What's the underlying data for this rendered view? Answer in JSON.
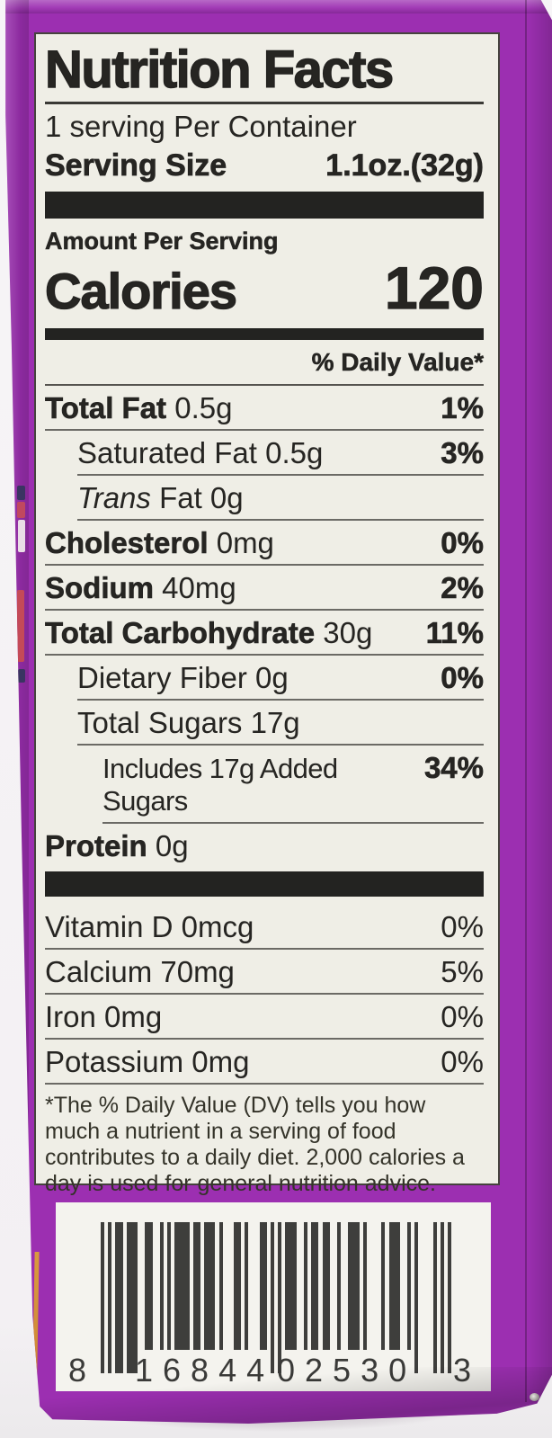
{
  "colors": {
    "purple": "#9c2fb1",
    "labelBg": "#efeee6",
    "ink": "#262522"
  },
  "label": {
    "title": "Nutrition Facts",
    "servings_line": "1 serving Per Container",
    "serving_size_label": "Serving Size",
    "serving_size_value": "1.1oz.(32g)",
    "amount_per_serving": "Amount Per Serving",
    "calories_label": "Calories",
    "calories_value": "120",
    "daily_value_header": "% Daily Value*",
    "nutrients": [
      {
        "name": "Total Fat",
        "amount": "0.5g",
        "dv": "1%",
        "name_bold": true,
        "dv_bold": true,
        "indent": 0
      },
      {
        "name": "Saturated Fat",
        "amount": "0.5g",
        "dv": "3%",
        "name_bold": false,
        "dv_bold": true,
        "indent": 1
      },
      {
        "name": "Trans",
        "amount": "Fat 0g",
        "dv": "",
        "name_bold": false,
        "name_italic": true,
        "indent": 1
      },
      {
        "name": "Cholesterol",
        "amount": "0mg",
        "dv": "0%",
        "name_bold": true,
        "dv_bold": true,
        "indent": 0
      },
      {
        "name": "Sodium",
        "amount": "40mg",
        "dv": "2%",
        "name_bold": true,
        "dv_bold": true,
        "indent": 0
      },
      {
        "name": "Total Carbohydrate",
        "amount": "30g",
        "dv": "11%",
        "name_bold": true,
        "dv_bold": true,
        "indent": 0
      },
      {
        "name": "Dietary Fiber",
        "amount": "0g",
        "dv": "0%",
        "name_bold": false,
        "dv_bold": true,
        "indent": 1
      },
      {
        "name": "Total Sugars",
        "amount": "17g",
        "dv": "",
        "name_bold": false,
        "indent": 1
      },
      {
        "name": "Includes 17g Added Sugars",
        "amount": "",
        "dv": "34%",
        "name_bold": false,
        "dv_bold": true,
        "indent": 2
      },
      {
        "name": "Protein",
        "amount": "0g",
        "dv": "",
        "name_bold": true,
        "indent": 0,
        "last": true
      }
    ],
    "vitamins": [
      {
        "name": "Vitamin D 0mcg",
        "dv": "0%"
      },
      {
        "name": "Calcium 70mg",
        "dv": "5%"
      },
      {
        "name": "Iron 0mg",
        "dv": "0%"
      },
      {
        "name": "Potassium 0mg",
        "dv": "0%"
      }
    ],
    "footnote": "*The % Daily Value (DV) tells you how much a nutrient in a serving of food contributes to a daily diet. 2,000 calories a day is used for general nutrition advice."
  },
  "barcode": {
    "left_digit": "8",
    "group1": "16844",
    "group2": "02530",
    "right_digit": "3",
    "full_number": "8 16844 02530 3",
    "pattern": "10101101110011001010111101101110100011010001101010111001011011001001110100001011100101000010101",
    "long_ranges": [
      [
        0,
        2
      ],
      [
        3,
        9
      ],
      [
        45,
        49
      ],
      [
        85,
        91
      ],
      [
        92,
        94
      ]
    ]
  }
}
